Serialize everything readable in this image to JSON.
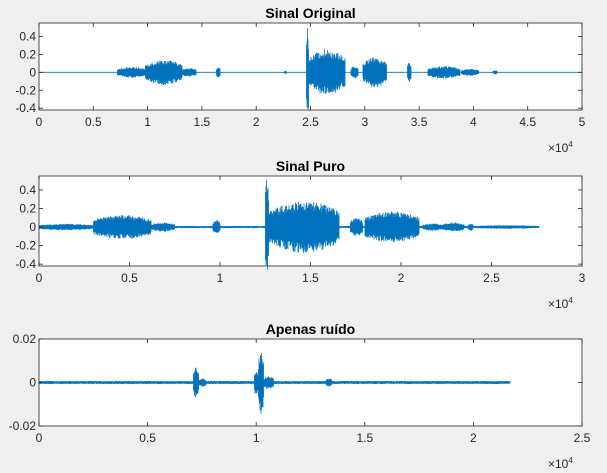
{
  "figure": {
    "background": "#f0f0f0",
    "axes_color": "#262626",
    "plot_bg": "#ffffff"
  },
  "chart_data": [
    {
      "type": "line",
      "title": "Sinal Original",
      "xlim": [
        0,
        50000
      ],
      "ylim": [
        -0.42,
        0.55
      ],
      "x_exponent_label": "×10",
      "x_exponent": "4",
      "xticks": [
        0,
        5000,
        10000,
        15000,
        20000,
        25000,
        30000,
        35000,
        40000,
        45000,
        50000
      ],
      "xtick_labels": [
        "0",
        "0.5",
        "1",
        "1.5",
        "2",
        "2.5",
        "3",
        "3.5",
        "4",
        "4.5",
        "5"
      ],
      "yticks": [
        -0.4,
        -0.2,
        0,
        0.2,
        0.4
      ],
      "ytick_labels": [
        "-0.4",
        "-0.2",
        "0",
        "0.2",
        "0.4"
      ],
      "grid": false,
      "series": [
        {
          "color": "#0072bd",
          "x_end": 50000,
          "floor": 0.004,
          "segments": [
            {
              "start": 7200,
              "end": 9800,
              "amp": 0.06
            },
            {
              "start": 9800,
              "end": 13200,
              "amp": 0.14
            },
            {
              "start": 13200,
              "end": 14500,
              "amp": 0.05
            },
            {
              "start": 16300,
              "end": 16700,
              "amp": 0.06
            },
            {
              "start": 22600,
              "end": 22800,
              "amp": 0.02
            },
            {
              "start": 24600,
              "end": 24850,
              "amp": 0.55
            },
            {
              "start": 24850,
              "end": 28200,
              "amp": 0.26
            },
            {
              "start": 28700,
              "end": 29400,
              "amp": 0.07
            },
            {
              "start": 29800,
              "end": 32000,
              "amp": 0.17
            },
            {
              "start": 33900,
              "end": 34300,
              "amp": 0.11
            },
            {
              "start": 35800,
              "end": 38800,
              "amp": 0.07
            },
            {
              "start": 38900,
              "end": 40500,
              "amp": 0.04
            },
            {
              "start": 41800,
              "end": 42200,
              "amp": 0.025
            }
          ]
        }
      ]
    },
    {
      "type": "line",
      "title": "Sinal Puro",
      "xlim": [
        0,
        30000
      ],
      "ylim": [
        -0.42,
        0.55
      ],
      "x_exponent_label": "×10",
      "x_exponent": "4",
      "xticks": [
        0,
        5000,
        10000,
        15000,
        20000,
        25000,
        30000
      ],
      "xtick_labels": [
        "0",
        "0.5",
        "1",
        "1.5",
        "2",
        "2.5",
        "3"
      ],
      "yticks": [
        -0.4,
        -0.2,
        0,
        0.2,
        0.4
      ],
      "ytick_labels": [
        "-0.4",
        "-0.2",
        "0",
        "0.2",
        "0.4"
      ],
      "grid": false,
      "series": [
        {
          "color": "#0072bd",
          "x_end": 27600,
          "floor": 0.012,
          "segments": [
            {
              "start": 0,
              "end": 3000,
              "amp": 0.035
            },
            {
              "start": 3000,
              "end": 6200,
              "amp": 0.13
            },
            {
              "start": 6200,
              "end": 7500,
              "amp": 0.05
            },
            {
              "start": 9600,
              "end": 10000,
              "amp": 0.08
            },
            {
              "start": 12500,
              "end": 12700,
              "amp": 0.55
            },
            {
              "start": 12700,
              "end": 16600,
              "amp": 0.28
            },
            {
              "start": 17200,
              "end": 17900,
              "amp": 0.1
            },
            {
              "start": 18000,
              "end": 21000,
              "amp": 0.17
            },
            {
              "start": 21200,
              "end": 22300,
              "amp": 0.04
            },
            {
              "start": 22300,
              "end": 23500,
              "amp": 0.05
            },
            {
              "start": 23700,
              "end": 24000,
              "amp": 0.04
            },
            {
              "start": 24000,
              "end": 27600,
              "amp": 0.02
            }
          ]
        }
      ]
    },
    {
      "type": "line",
      "title": "Apenas ruído",
      "xlim": [
        0,
        25000
      ],
      "ylim": [
        -0.02,
        0.02
      ],
      "x_exponent_label": "×10",
      "x_exponent": "4",
      "xticks": [
        0,
        5000,
        10000,
        15000,
        20000,
        25000
      ],
      "xtick_labels": [
        "0",
        "0.5",
        "1",
        "1.5",
        "2",
        "2.5"
      ],
      "yticks": [
        -0.02,
        0,
        0.02
      ],
      "ytick_labels": [
        "-0.02",
        "0",
        "0.02"
      ],
      "grid": false,
      "series": [
        {
          "color": "#0072bd",
          "x_end": 21700,
          "floor": 0.0007,
          "segments": [
            {
              "start": 7100,
              "end": 7350,
              "amp": 0.007
            },
            {
              "start": 7350,
              "end": 7700,
              "amp": 0.002
            },
            {
              "start": 9900,
              "end": 10100,
              "amp": 0.006
            },
            {
              "start": 10100,
              "end": 10350,
              "amp": 0.015
            },
            {
              "start": 10350,
              "end": 10800,
              "amp": 0.003
            },
            {
              "start": 13200,
              "end": 13500,
              "amp": 0.002
            }
          ]
        }
      ]
    }
  ]
}
